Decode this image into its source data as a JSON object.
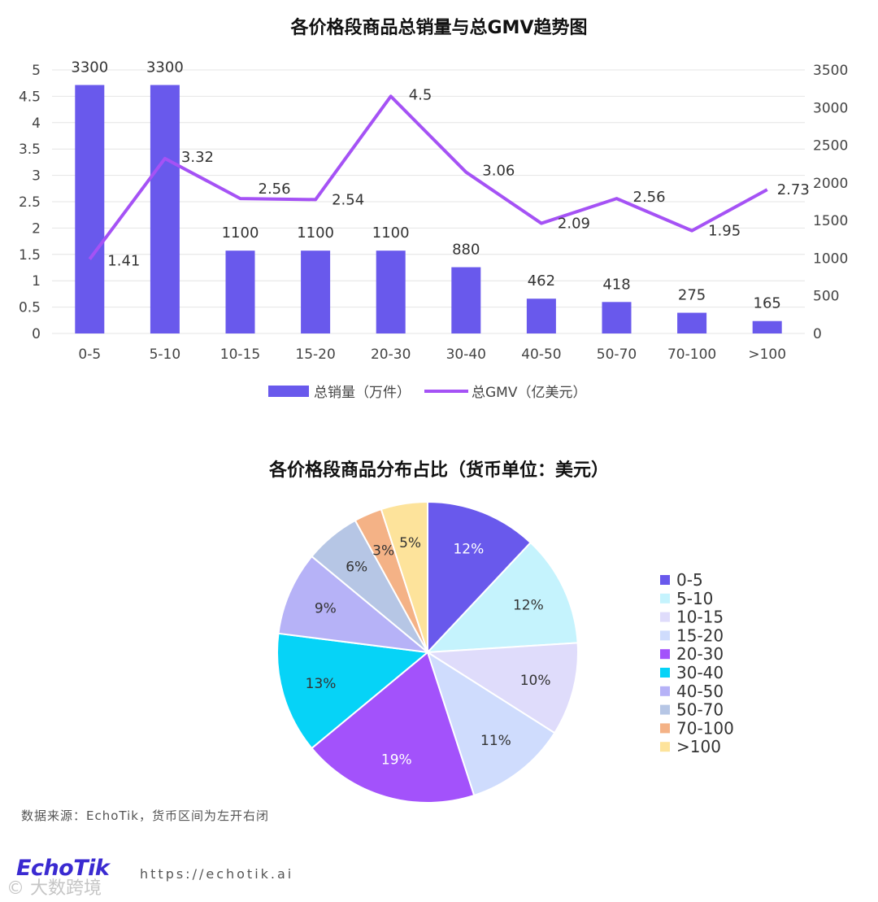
{
  "chart_data": [
    {
      "type": "bar+line",
      "title": "各价格段商品总销量与总GMV趋势图",
      "categories": [
        "0-5",
        "5-10",
        "10-15",
        "15-20",
        "20-30",
        "30-40",
        "40-50",
        "50-70",
        "70-100",
        ">100"
      ],
      "series": [
        {
          "name": "总销量（万件）",
          "type": "bar",
          "axis": "right",
          "values": [
            3300,
            3300,
            1100,
            1100,
            1100,
            880,
            462,
            418,
            275,
            165
          ],
          "labels": [
            "3300",
            "3300",
            "1100",
            "1100",
            "1100",
            "880",
            "462",
            "418",
            "275",
            "165"
          ],
          "color": "#6959ec"
        },
        {
          "name": "总GMV（亿美元）",
          "type": "line",
          "axis": "left",
          "values": [
            1.41,
            3.32,
            2.56,
            2.54,
            4.5,
            3.06,
            2.09,
            2.56,
            1.95,
            2.73
          ],
          "labels": [
            "1.41",
            "3.32",
            "2.56",
            "2.54",
            "4.5",
            "3.06",
            "2.09",
            "2.56",
            "1.95",
            "2.73"
          ],
          "color": "#a552f5"
        }
      ],
      "y_left": {
        "range": [
          0,
          5
        ],
        "ticks": [
          "0",
          "0.5",
          "1",
          "1.5",
          "2",
          "2.5",
          "3",
          "3.5",
          "4",
          "4.5",
          "5"
        ]
      },
      "y_right": {
        "range": [
          0,
          3500
        ],
        "ticks": [
          "0",
          "500",
          "1000",
          "1500",
          "2000",
          "2500",
          "3000",
          "3500"
        ]
      },
      "grid": true,
      "legend": "bottom-center"
    },
    {
      "type": "pie",
      "title": "各价格段商品分布占比（货币单位：美元）",
      "slices": [
        {
          "label": "0-5",
          "value": 12,
          "text": "12%",
          "color": "#6959ec"
        },
        {
          "label": "5-10",
          "value": 12,
          "text": "12%",
          "color": "#c5f3fd"
        },
        {
          "label": "10-15",
          "value": 10,
          "text": "10%",
          "color": "#dfdcfb"
        },
        {
          "label": "15-20",
          "value": 11,
          "text": "11%",
          "color": "#cfdcfd"
        },
        {
          "label": "20-30",
          "value": 19,
          "text": "19%",
          "color": "#a352fb"
        },
        {
          "label": "30-40",
          "value": 13,
          "text": "13%",
          "color": "#06d3f7"
        },
        {
          "label": "40-50",
          "value": 9,
          "text": "9%",
          "color": "#b6b2f7"
        },
        {
          "label": "50-70",
          "value": 6,
          "text": "6%",
          "color": "#b6c6e5"
        },
        {
          "label": "70-100",
          "value": 3,
          "text": "3%",
          "color": "#f4b286"
        },
        {
          "label": ">100",
          "value": 5,
          "text": "5%",
          "color": "#fde39b"
        }
      ],
      "legend": "right"
    }
  ],
  "footer": {
    "source": "数据来源：EchoTik，货币区间为左开右闭",
    "logo": "EchoTik",
    "url": "https://echotik.ai",
    "watermark": "© 大数跨境"
  }
}
